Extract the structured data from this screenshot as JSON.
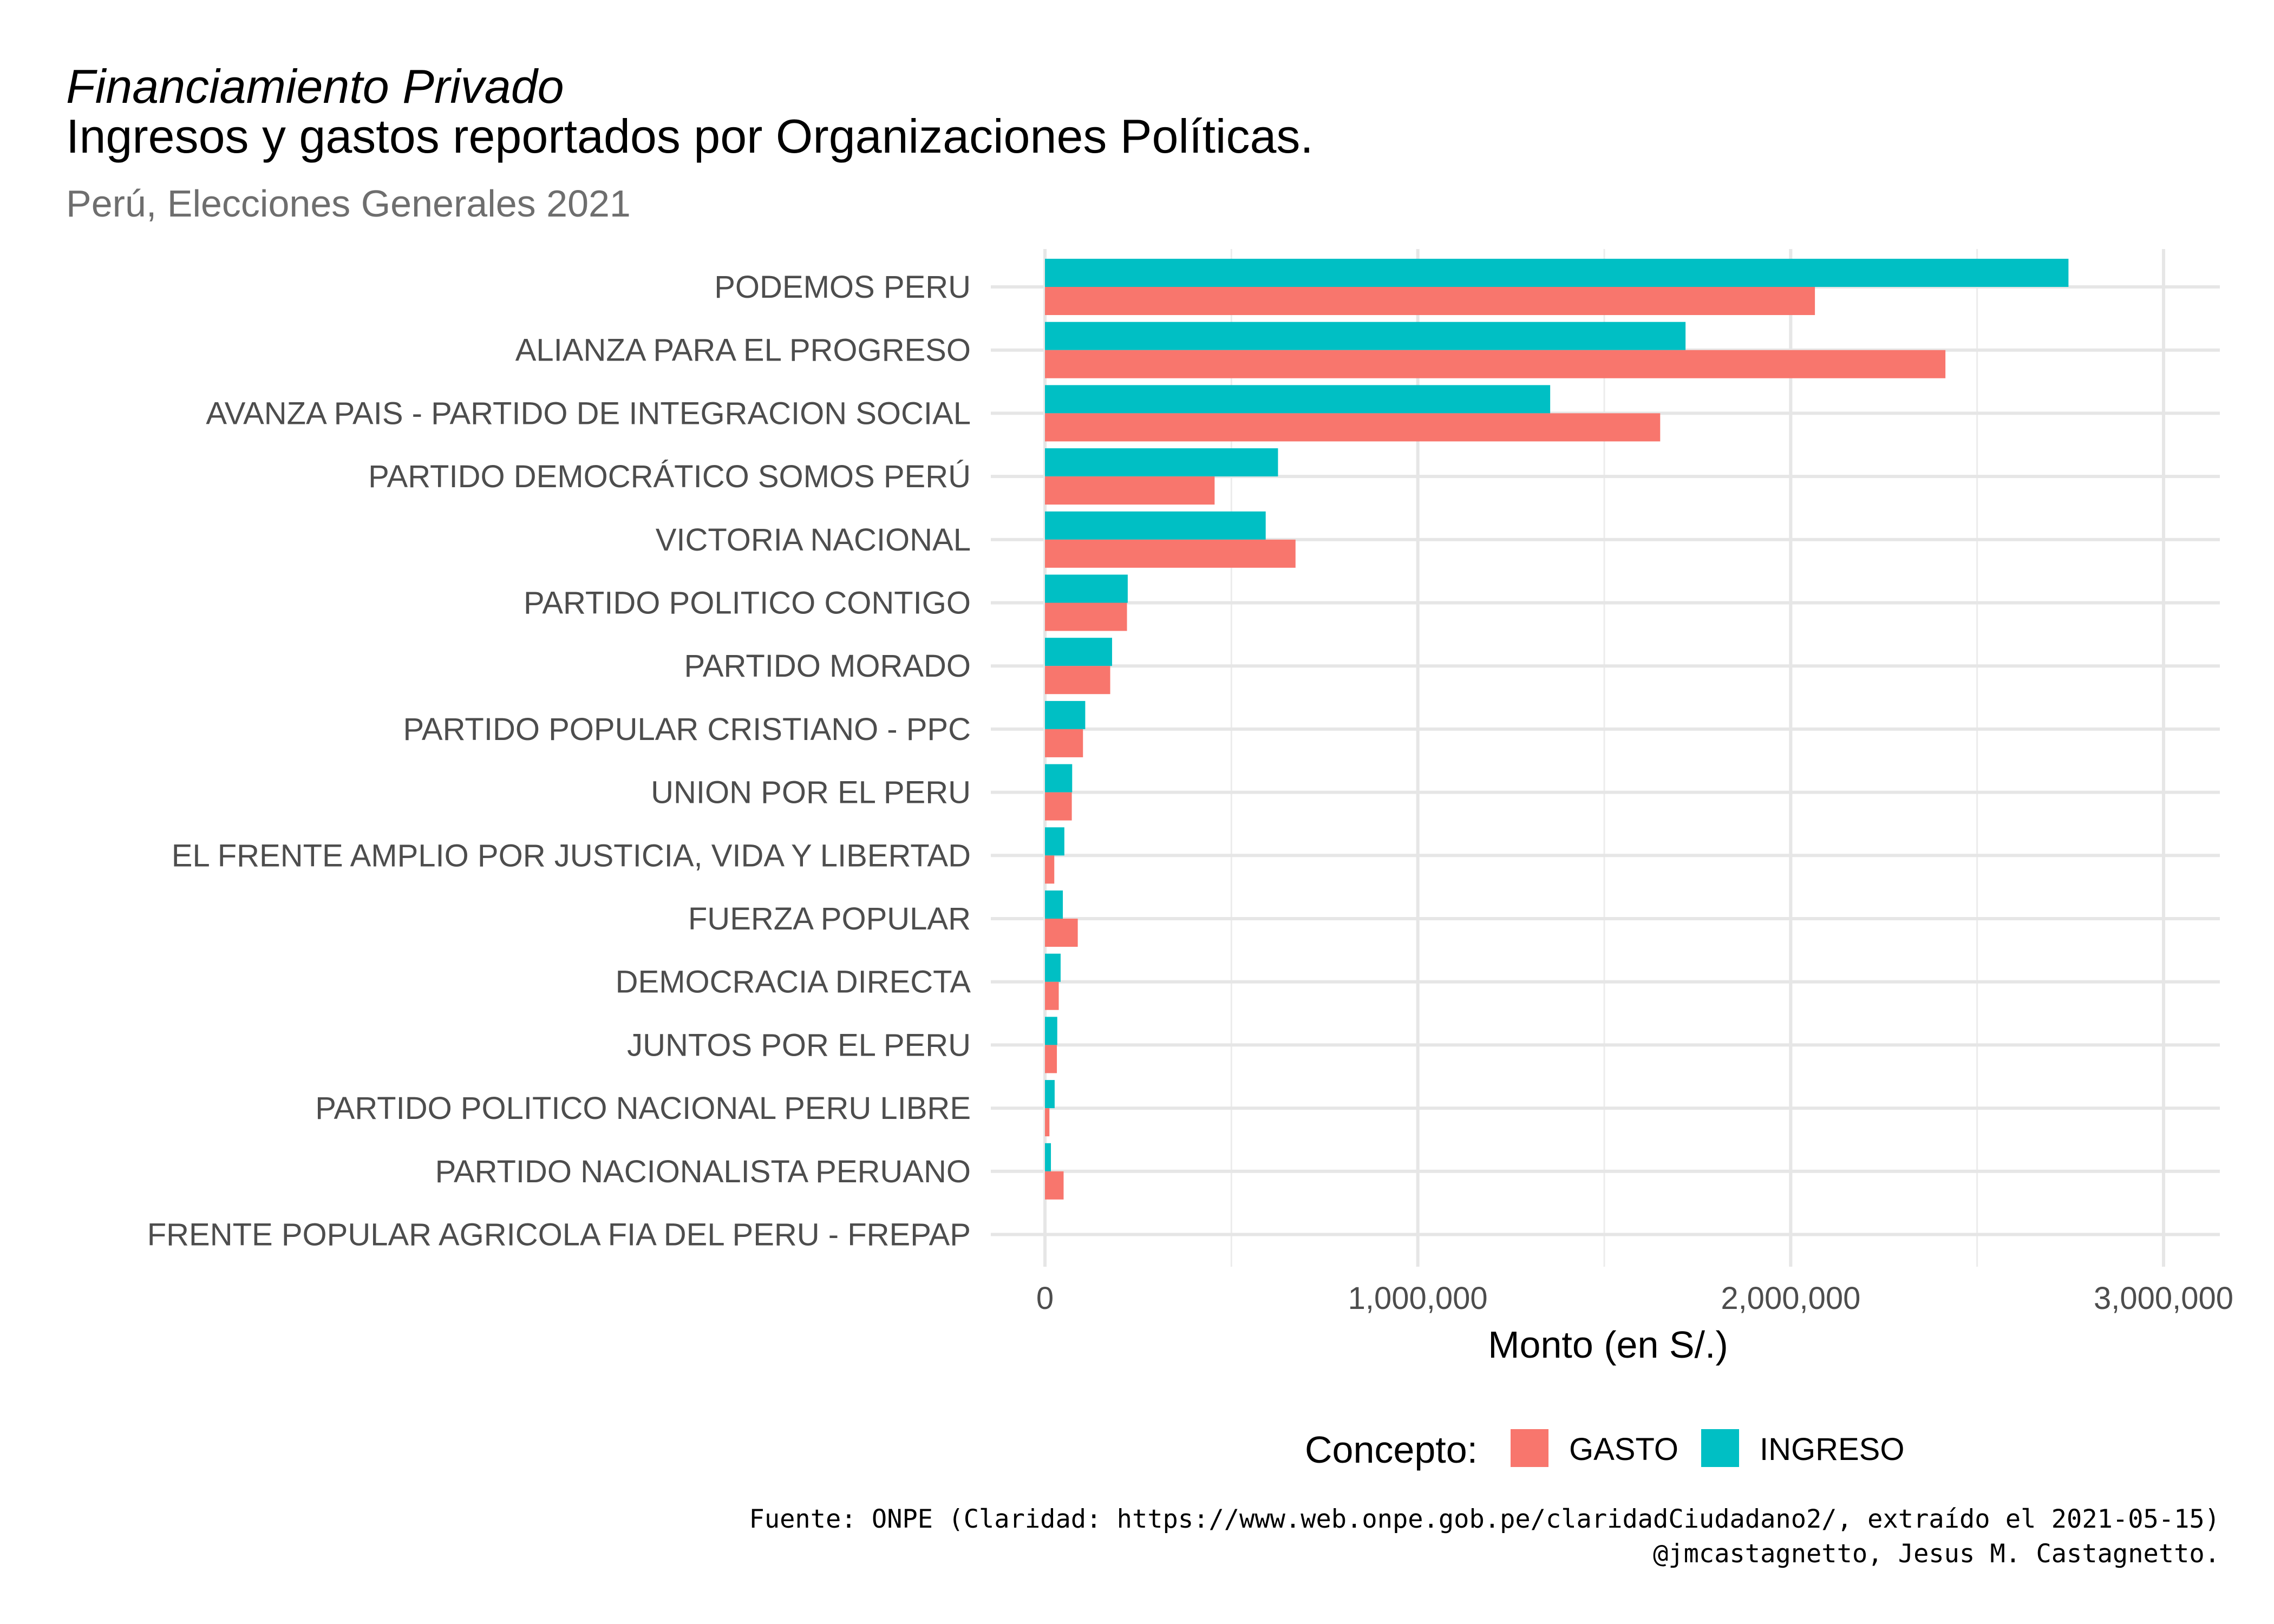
{
  "chart_data": {
    "type": "bar",
    "orientation": "horizontal",
    "title_italic": "Financiamiento Privado",
    "title": "Ingresos y gastos reportados por Organizaciones Políticas.",
    "subtitle": "Perú, Elecciones Generales 2021",
    "xlabel": "Monto (en S/.)",
    "ylabel": "",
    "xlim": [
      0,
      3150000
    ],
    "x_ticks": [
      0,
      1000000,
      2000000,
      3000000
    ],
    "x_tick_labels": [
      "0",
      "1,000,000",
      "2,000,000",
      "3,000,000"
    ],
    "grid": true,
    "legend_position": "bottom",
    "legend_title": "Concepto:",
    "categories": [
      "PODEMOS PERU",
      "ALIANZA PARA EL PROGRESO",
      "AVANZA PAIS - PARTIDO DE INTEGRACION SOCIAL",
      "PARTIDO DEMOCRÁTICO SOMOS PERÚ",
      "VICTORIA NACIONAL",
      "PARTIDO POLITICO CONTIGO",
      "PARTIDO MORADO",
      "PARTIDO POPULAR CRISTIANO - PPC",
      "UNION POR EL PERU",
      "EL FRENTE AMPLIO POR JUSTICIA, VIDA Y LIBERTAD",
      "FUERZA POPULAR",
      "DEMOCRACIA DIRECTA",
      "JUNTOS POR EL PERU",
      "PARTIDO POLITICO NACIONAL PERU LIBRE",
      "PARTIDO NACIONALISTA PERUANO",
      "FRENTE POPULAR AGRICOLA FIA DEL PERU - FREPAP"
    ],
    "series": [
      {
        "name": "GASTO",
        "color": "#F8766D",
        "values": [
          2065000,
          2415000,
          1650000,
          455000,
          672000,
          220000,
          175000,
          102000,
          72000,
          25000,
          88000,
          37000,
          32000,
          12000,
          50000,
          0
        ]
      },
      {
        "name": "INGRESO",
        "color": "#00BFC4",
        "values": [
          2745000,
          1718000,
          1355000,
          625000,
          592000,
          222000,
          180000,
          108000,
          73000,
          52000,
          48000,
          42000,
          33000,
          26000,
          16000,
          0
        ]
      }
    ]
  },
  "caption": {
    "line1": "Fuente: ONPE (Claridad: https://www.web.onpe.gob.pe/claridadCiudadano2/, extraído el 2021-05-15)",
    "line2": "@jmcastagnetto, Jesus M. Castagnetto."
  }
}
